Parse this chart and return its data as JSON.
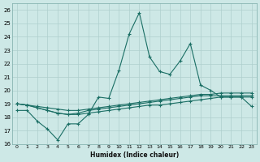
{
  "xlabel": "Humidex (Indice chaleur)",
  "xlim": [
    -0.5,
    23.5
  ],
  "ylim": [
    16,
    26.5
  ],
  "yticks": [
    16,
    17,
    18,
    19,
    20,
    21,
    22,
    23,
    24,
    25,
    26
  ],
  "xticks": [
    0,
    1,
    2,
    3,
    4,
    5,
    6,
    7,
    8,
    9,
    10,
    11,
    12,
    13,
    14,
    15,
    16,
    17,
    18,
    19,
    20,
    21,
    22,
    23
  ],
  "bg_color": "#cde8e6",
  "grid_color": "#aecfcd",
  "line_color": "#1a6e64",
  "line1": [
    18.5,
    18.5,
    17.7,
    17.1,
    16.3,
    17.5,
    17.5,
    18.2,
    19.5,
    19.4,
    21.5,
    24.2,
    25.8,
    22.5,
    21.4,
    21.2,
    22.2,
    23.5,
    20.4,
    20.0,
    19.5,
    19.5,
    19.5,
    18.8
  ],
  "line2": [
    19.0,
    18.9,
    18.7,
    18.5,
    18.3,
    18.2,
    18.2,
    18.3,
    18.4,
    18.5,
    18.6,
    18.7,
    18.8,
    18.9,
    18.9,
    19.0,
    19.1,
    19.2,
    19.3,
    19.4,
    19.5,
    19.5,
    19.5,
    19.5
  ],
  "line3": [
    19.0,
    18.9,
    18.7,
    18.5,
    18.3,
    18.2,
    18.3,
    18.5,
    18.6,
    18.7,
    18.8,
    18.9,
    19.0,
    19.1,
    19.2,
    19.3,
    19.4,
    19.5,
    19.6,
    19.6,
    19.6,
    19.6,
    19.6,
    19.6
  ],
  "line4": [
    19.0,
    18.9,
    18.8,
    18.7,
    18.6,
    18.5,
    18.5,
    18.6,
    18.7,
    18.8,
    18.9,
    19.0,
    19.1,
    19.2,
    19.3,
    19.4,
    19.5,
    19.6,
    19.7,
    19.7,
    19.8,
    19.8,
    19.8,
    19.8
  ]
}
